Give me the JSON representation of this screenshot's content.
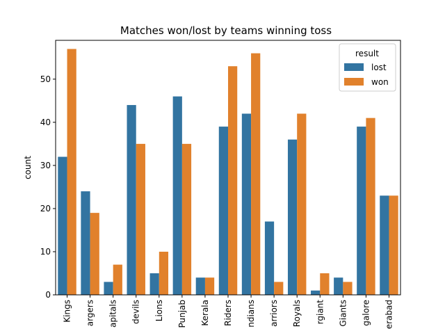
{
  "chart_data": {
    "type": "bar",
    "title": "Matches won/lost by teams winning toss",
    "xlabel": "",
    "ylabel": "count",
    "ylim": [
      0,
      59
    ],
    "yticks": [
      0,
      10,
      20,
      30,
      40,
      50
    ],
    "grid": false,
    "legend": {
      "title": "result",
      "placement": "top-right"
    },
    "categories": [
      "Kings",
      "argers",
      "apitals",
      "devils",
      "Lions",
      "Punjab",
      "Kerala",
      "Riders",
      "ndians",
      "arriors",
      "Royals",
      "rgiant",
      "Giants",
      "galore",
      "erabad"
    ],
    "series": [
      {
        "name": "lost",
        "color": "#3274a1",
        "values": [
          32,
          24,
          3,
          44,
          5,
          46,
          4,
          39,
          42,
          17,
          36,
          1,
          4,
          39,
          23
        ]
      },
      {
        "name": "won",
        "color": "#e1812c",
        "values": [
          57,
          19,
          7,
          35,
          10,
          35,
          4,
          53,
          56,
          3,
          42,
          5,
          3,
          41,
          23
        ]
      }
    ]
  }
}
